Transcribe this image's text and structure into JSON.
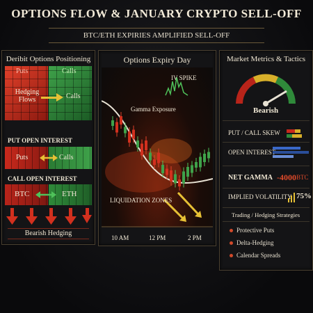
{
  "header": {
    "title": "Options Flow & January Crypto Sell-Off",
    "subtitle": "BTC/ETH Expiries Amplified Sell-Off"
  },
  "left_panel": {
    "title": "Deribit Options Positioning",
    "puts_label": "Puts",
    "calls_label": "Calls",
    "hedging_flows": "Hedging Flows",
    "hedging_calls": "Calls",
    "put_oi_title": "Put Open Interest",
    "oi_puts": "Puts",
    "oi_calls": "Calls",
    "call_oi_title": "Call Open Interest",
    "btc_label": "BTC",
    "eth_label": "ETH",
    "bearish_hedging": "Bearish Hedging"
  },
  "center_panel": {
    "title": "Options Expiry Day",
    "iv_spike": "IV Spike",
    "gamma_exposure": "Gamma Exposure",
    "liquidation_zones": "Liquidation Zones",
    "time_labels": [
      "10 AM",
      "12 PM",
      "2 PM"
    ]
  },
  "right_panel": {
    "title": "Market Metrics & Tactics",
    "gauge_label": "Bearish",
    "put_call_skew": "Put / Call Skew",
    "open_interest": "Open Interest",
    "net_gamma_label": "Net Gamma",
    "net_gamma_value": "-4000",
    "net_gamma_unit": "BTC",
    "implied_vol_label": "Implied Volatility",
    "implied_vol_value": "75%",
    "strategies_title": "Trading / Hedging Strategies",
    "strategies": [
      "Protective Puts",
      "Delta-Hedging",
      "Calendar Spreads"
    ]
  },
  "colors": {
    "red": "#c8291c",
    "green": "#2f8a3a",
    "yellow": "#e6c035",
    "gold_border": "#4a4030"
  }
}
